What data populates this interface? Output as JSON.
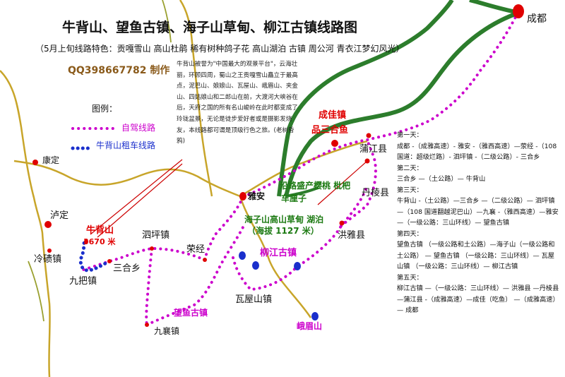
{
  "title": "牛背山、望鱼古镇、海子山草甸、柳江古镇线路图",
  "subtitle": "（5月上旬线路特色：贡嘎雪山 高山杜鹃 稀有树种鸽子花 高山湖泊 古镇 周公河 青衣江梦幻风光）",
  "contact": "QQ398667782 制作",
  "legend": {
    "title": "图例：",
    "items": [
      {
        "label": "自驾线路",
        "color": "#cc00cc"
      },
      {
        "label": "牛背山租车线路",
        "color": "#1a2fcc"
      }
    ]
  },
  "description": "牛背山被誉为\"中国最大的观景平台\"，云海壮丽，环顾四周，蜀山之王贡嘎雪山矗立于最高点，泥巴山、娘娘山、瓦屋山、峨眉山、夹金山、四姑娘山和二郎山在前，大渡河大峡谷在后，天府之国的所有名山峻岭在此时都变成了玲珑盆景，无论是徒步爱好者或是摄影发烧友，本线路都可谓是顶级行色之旅。(老树昏鸦)",
  "places": {
    "chengdu": "成都",
    "chengjia": "成佳镇",
    "sanhe_yu": "品三合鱼",
    "pujiang": "蒲江县",
    "danling": "丹棱县",
    "hongya": "洪雅县",
    "liujiang": "柳江古镇",
    "emeishan": "峨眉山",
    "wawushan": "瓦屋山镇",
    "wangyu": "望鱼古镇",
    "jiuxiang": "九襄镇",
    "yaan": "雅安",
    "rongjing": "荣经",
    "sipingzhen": "泗坪镇",
    "sanheixiang": "三合乡",
    "jiubazhen": "九把镇",
    "lengqi": "冷碛镇",
    "luding": "泸定",
    "kangding": "康定",
    "niubeishan": "牛背山",
    "niubei_alt": "3670 米",
    "haizishan": "海子山高山草甸  湖泊",
    "haizi_alt": "（海拔 1127 米）",
    "yinghua": "沿路盛产樱桃  枇杷",
    "cheliz": "车厘子"
  },
  "itinerary": [
    {
      "day": "第一天：",
      "text": "成都 -（成雅高速）- 雅安 -（雅西高速）—荥经 -（108 国道：超级烂路）- 泗坪镇 -（二级公路）- 三合乡"
    },
    {
      "day": "第二天：",
      "text": "三合乡 —（土公路）— 牛背山"
    },
    {
      "day": "第三天：",
      "text": "牛背山 -（土公路）—三合乡 —（二级公路）— 泗坪镇 —（108 国道翻越泥巴山）—九襄 -（雅西高速）—雅安 —（一级公路：三山环线）— 望鱼古镇"
    },
    {
      "day": "第四天：",
      "text": "望鱼古镇 （一级公路和土公路）—海子山（一级公路和土公路） — 望鱼古镇 （一级公路：三山环线）— 瓦屋山镇 （一级公路：三山环线）— 柳江古镇"
    },
    {
      "day": "第五天：",
      "text": "柳江古镇 —（一级公路：三山环线）— 洪雅县 —丹棱县 —蒲江县 -（成雅高速）—成佳（吃鱼） —（成雅高速）— 成都"
    }
  ]
}
